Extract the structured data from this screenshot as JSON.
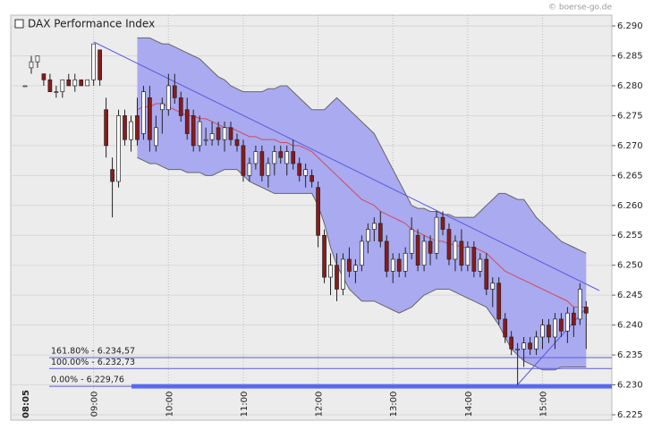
{
  "chart_data": {
    "type": "candlestick",
    "title": "DAX Performance Index",
    "watermark": "© boerse-go.de",
    "categories": [
      "08:05",
      null,
      null,
      null,
      null,
      null,
      null,
      null,
      null,
      null,
      null,
      "09:00",
      null,
      null,
      null,
      null,
      null,
      null,
      null,
      null,
      null,
      null,
      null,
      "10:00",
      null,
      null,
      null,
      null,
      null,
      null,
      null,
      null,
      null,
      null,
      null,
      "11:00",
      null,
      null,
      null,
      null,
      null,
      null,
      null,
      null,
      null,
      null,
      null,
      "12:00",
      null,
      null,
      null,
      null,
      null,
      null,
      null,
      null,
      null,
      null,
      null,
      "13:00",
      null,
      null,
      null,
      null,
      null,
      null,
      null,
      null,
      null,
      null,
      null,
      "14:00",
      null,
      null,
      null,
      null,
      null,
      null,
      null,
      null,
      null,
      null,
      null,
      "15:00",
      null,
      null,
      null,
      null,
      null,
      null,
      null
    ],
    "open": [
      6280,
      6283,
      6284,
      6282,
      6281,
      6279,
      6279,
      6281,
      6280,
      6281,
      6280,
      6281,
      6286,
      6276,
      6266,
      6264,
      6275,
      6271,
      6275,
      6272,
      6278,
      6270,
      6276,
      6276,
      6280,
      6278,
      6276,
      6275,
      6270,
      6271,
      6271,
      6273,
      6271,
      6273,
      6271,
      6270,
      6265,
      6267,
      6269,
      6265,
      6267,
      6269,
      6267,
      6269,
      6267,
      6265,
      6265,
      6263,
      6255,
      6248,
      6250,
      6246,
      6251,
      6249,
      6250,
      6254,
      6256,
      6257,
      6254,
      6249,
      6251,
      6249,
      6252,
      6255,
      6250,
      6254,
      6252,
      6258,
      6256,
      6251,
      6254,
      6250,
      6253,
      6249,
      6251,
      6246,
      6247,
      6241,
      6238,
      6236,
      6236,
      6237,
      6236,
      6238,
      6240,
      6238,
      6241,
      6239,
      6242,
      6241,
      6243
    ],
    "high": [
      6280,
      6285,
      6285,
      6282,
      6282,
      6280,
      6281,
      6282,
      6282,
      6281,
      6281,
      6287,
      6286,
      6278,
      6268,
      6276,
      6276,
      6275,
      6278,
      6280,
      6280,
      6275,
      6278,
      6282,
      6282,
      6279,
      6278,
      6276,
      6275,
      6273,
      6274,
      6274,
      6274,
      6274,
      6272,
      6271,
      6268,
      6270,
      6270,
      6268,
      6270,
      6270,
      6270,
      6271,
      6268,
      6267,
      6266,
      6264,
      6256,
      6252,
      6252,
      6252,
      6253,
      6251,
      6255,
      6257,
      6258,
      6259,
      6255,
      6252,
      6252,
      6253,
      6258,
      6256,
      6255,
      6255,
      6259,
      6259,
      6257,
      6255,
      6256,
      6254,
      6254,
      6252,
      6252,
      6248,
      6248,
      6242,
      6239,
      6237,
      6238,
      6238,
      6239,
      6241,
      6241,
      6242,
      6242,
      6243,
      6243,
      6247,
      6244
    ],
    "low": [
      6280,
      6282,
      6283,
      6280,
      6279,
      6278,
      6278,
      6280,
      6279,
      6280,
      6280,
      6280,
      6280,
      6268,
      6258,
      6263,
      6270,
      6269,
      6270,
      6271,
      6269,
      6269,
      6272,
      6275,
      6277,
      6274,
      6271,
      6269,
      6269,
      6270,
      6270,
      6270,
      6269,
      6270,
      6269,
      6264,
      6264,
      6266,
      6264,
      6263,
      6265,
      6267,
      6265,
      6266,
      6264,
      6263,
      6263,
      6253,
      6247,
      6245,
      6244,
      6245,
      6248,
      6247,
      6249,
      6252,
      6254,
      6253,
      6248,
      6247,
      6248,
      6248,
      6251,
      6249,
      6249,
      6250,
      6251,
      6255,
      6250,
      6249,
      6249,
      6249,
      6248,
      6248,
      6245,
      6243,
      6240,
      6237,
      6235,
      6230,
      6233,
      6235,
      6235,
      6236,
      6237,
      6236,
      6238,
      6237,
      6238,
      6240,
      6236
    ],
    "close": [
      6280,
      6284,
      6285,
      6281,
      6279,
      6279,
      6281,
      6280,
      6281,
      6280,
      6281,
      6287,
      6281,
      6270,
      6264,
      6275,
      6271,
      6274,
      6271,
      6279,
      6271,
      6273,
      6277,
      6280,
      6278,
      6275,
      6272,
      6270,
      6274,
      6271,
      6272,
      6271,
      6273,
      6271,
      6270,
      6265,
      6267,
      6269,
      6265,
      6267,
      6269,
      6268,
      6269,
      6267,
      6265,
      6266,
      6264,
      6255,
      6248,
      6250,
      6246,
      6251,
      6249,
      6250,
      6254,
      6256,
      6257,
      6254,
      6249,
      6251,
      6249,
      6252,
      6256,
      6250,
      6254,
      6252,
      6258,
      6256,
      6251,
      6254,
      6250,
      6253,
      6249,
      6251,
      6246,
      6247,
      6241,
      6238,
      6236,
      6236,
      6237,
      6236,
      6238,
      6240,
      6238,
      6241,
      6239,
      6242,
      6240,
      6246,
      6242
    ],
    "up_color": "#ffffff",
    "down_color": "#8b1a1a",
    "bands": {
      "upper": [
        null,
        null,
        null,
        null,
        null,
        null,
        null,
        null,
        null,
        null,
        null,
        null,
        null,
        null,
        null,
        null,
        null,
        null,
        6288,
        6288,
        6288,
        6287.5,
        6287,
        6287,
        6286.5,
        6286,
        6285.5,
        6285,
        6284.5,
        6283.5,
        6282.5,
        6281.5,
        6281,
        6280,
        6279.5,
        6279,
        6279,
        6279,
        6279,
        6279.5,
        6279.5,
        6280,
        6280,
        6279,
        6278,
        6277,
        6276,
        6276,
        6276,
        6277,
        6278,
        6277,
        6276,
        6275,
        6274,
        6273,
        6272,
        6270,
        6268,
        6266,
        6264,
        6262,
        6260,
        6259.5,
        6259.5,
        6259,
        6259,
        6258.5,
        6258.5,
        6258,
        6258,
        6258,
        6258,
        6259,
        6260,
        6261,
        6262,
        6262,
        6261.5,
        6261,
        6261,
        6259.5,
        6258,
        6257,
        6256,
        6255,
        6254,
        6253.5,
        6253,
        6252.5,
        6252
      ],
      "middle": [
        null,
        null,
        null,
        null,
        null,
        null,
        null,
        null,
        null,
        null,
        null,
        null,
        null,
        null,
        null,
        null,
        null,
        null,
        6276,
        6276.5,
        6276.5,
        6277,
        6277,
        6276.5,
        6276,
        6275.5,
        6275,
        6275,
        6274.5,
        6274.5,
        6274,
        6273.5,
        6273,
        6273,
        6272.5,
        6272,
        6271.5,
        6271.5,
        6271,
        6271,
        6271,
        6270.5,
        6270.5,
        6270,
        6270,
        6269.5,
        6269,
        6268,
        6267,
        6266,
        6265,
        6264,
        6263,
        6262,
        6261,
        6260.5,
        6260,
        6259,
        6258.5,
        6258,
        6257.5,
        6257,
        6256,
        6255.5,
        6255,
        6254.5,
        6254,
        6254,
        6253.5,
        6253.5,
        6253,
        6253,
        6253,
        6252.5,
        6252,
        6251,
        6250,
        6249,
        6248.5,
        6248,
        6247.5,
        6247,
        6246.5,
        6246,
        6245.5,
        6245,
        6244.5,
        6244,
        6243,
        6243,
        6243
      ],
      "lower": [
        null,
        null,
        null,
        null,
        null,
        null,
        null,
        null,
        null,
        null,
        null,
        null,
        null,
        null,
        null,
        null,
        null,
        null,
        6268,
        6267.5,
        6267,
        6267,
        6266.5,
        6266,
        6266,
        6266,
        6265.5,
        6265.5,
        6265.5,
        6265,
        6265,
        6265.5,
        6266,
        6266,
        6266,
        6265,
        6264,
        6263.5,
        6263,
        6262.5,
        6262,
        6262,
        6262,
        6262,
        6262,
        6262,
        6262,
        6260,
        6257,
        6253,
        6250,
        6248,
        6246,
        6245,
        6244,
        6244,
        6244,
        6243.5,
        6243,
        6242.5,
        6242,
        6242.5,
        6243,
        6244,
        6245,
        6245.5,
        6246,
        6246,
        6246,
        6245.5,
        6245,
        6244.5,
        6244,
        6243.5,
        6243,
        6241.5,
        6240,
        6238,
        6236,
        6235,
        6234,
        6233.5,
        6233,
        6232.5,
        6232.5,
        6232.5,
        6233,
        6233,
        6233,
        6233,
        6233
      ],
      "fill": "#a9aaf0",
      "middle_color": "#d04a5a"
    },
    "fibonacci": [
      {
        "label": "161.80% - 6.234,57",
        "value": 6234.57
      },
      {
        "label": "100.00% - 6.232,73",
        "value": 6232.73
      },
      {
        "label": "0.00% - 6.229,76",
        "value": 6229.76
      }
    ],
    "fib_color": "#5a5ae0",
    "ylim": [
      6224.1,
      6291.8
    ],
    "yticks": [
      {
        "value": 6225,
        "label": "6.225"
      },
      {
        "value": 6230,
        "label": "6.230"
      },
      {
        "value": 6235,
        "label": "6.235"
      },
      {
        "value": 6240,
        "label": "6.240"
      },
      {
        "value": 6245,
        "label": "6.245"
      },
      {
        "value": 6250,
        "label": "6.250"
      },
      {
        "value": 6255,
        "label": "6.255"
      },
      {
        "value": 6260,
        "label": "6.260"
      },
      {
        "value": 6265,
        "label": "6.265"
      },
      {
        "value": 6270,
        "label": "6.270"
      },
      {
        "value": 6275,
        "label": "6.275"
      },
      {
        "value": 6280,
        "label": "6.280"
      },
      {
        "value": 6285,
        "label": "6.285"
      },
      {
        "value": 6290,
        "label": "6.290"
      }
    ],
    "grid": true
  }
}
